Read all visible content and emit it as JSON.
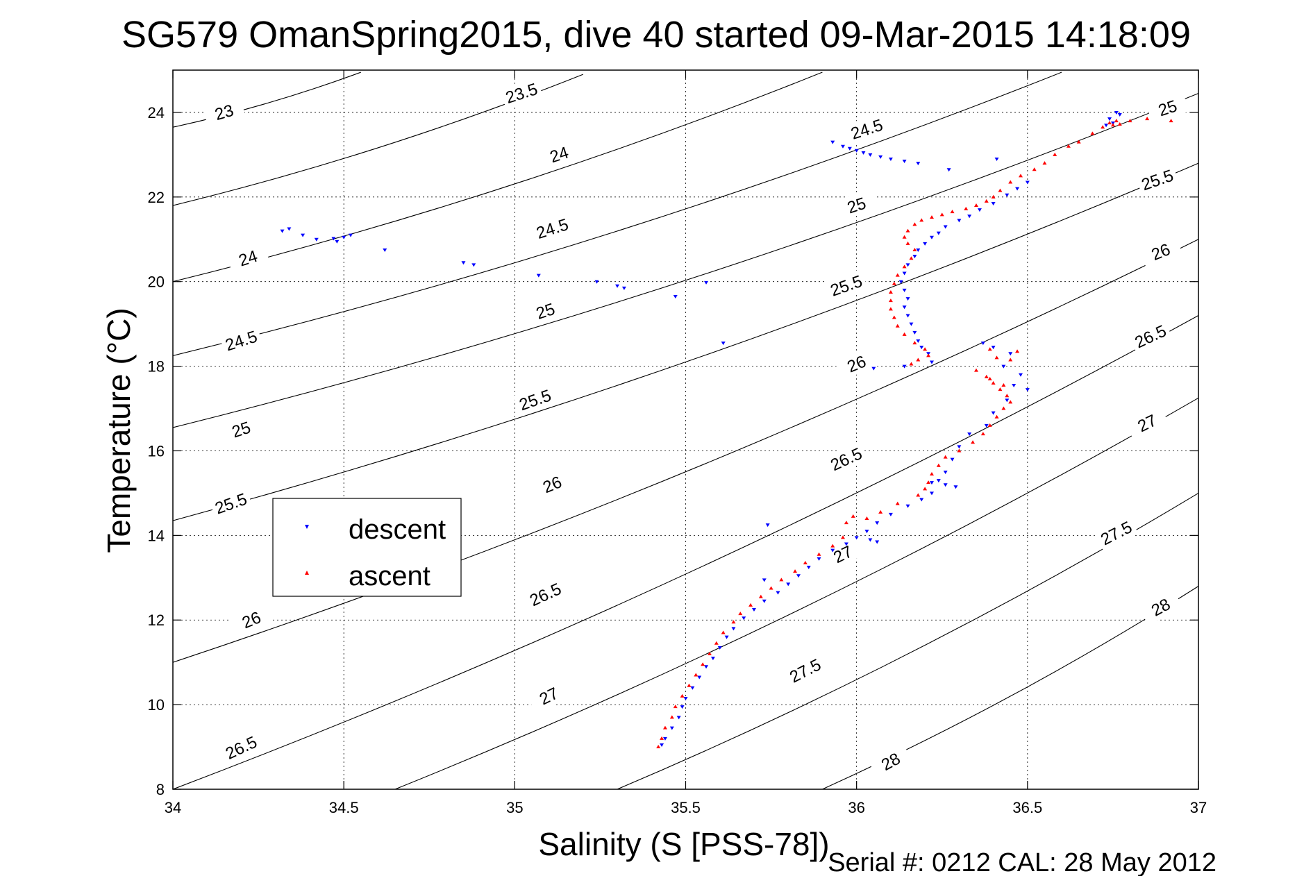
{
  "chart_data": {
    "type": "scatter",
    "title": "SG579 OmanSpring2015, dive 40 started 09-Mar-2015 14:18:09",
    "xlabel": "Salinity (S [PSS-78])",
    "ylabel": "Temperature (°C)",
    "footer": "Serial #: 0212  CAL: 28 May 2012",
    "xlim": [
      34,
      37
    ],
    "ylim": [
      8,
      25
    ],
    "xticks": [
      34,
      34.5,
      35,
      35.5,
      36,
      36.5,
      37
    ],
    "xtick_labels": [
      "34",
      "34.5",
      "35",
      "35.5",
      "36",
      "36.5",
      "37"
    ],
    "yticks": [
      8,
      10,
      12,
      14,
      16,
      18,
      20,
      22,
      24
    ],
    "ytick_labels": [
      "8",
      "10",
      "12",
      "14",
      "16",
      "18",
      "20",
      "22",
      "24"
    ],
    "grid": true,
    "legend_position": "left-middle",
    "series": [
      {
        "name": "descent",
        "color": "#0000ff",
        "marker": "triangle-down",
        "points": [
          [
            34.32,
            21.2
          ],
          [
            34.34,
            21.25
          ],
          [
            34.38,
            21.1
          ],
          [
            34.42,
            21.0
          ],
          [
            34.47,
            21.02
          ],
          [
            34.48,
            20.95
          ],
          [
            34.5,
            21.05
          ],
          [
            34.52,
            21.1
          ],
          [
            34.62,
            20.75
          ],
          [
            34.85,
            20.45
          ],
          [
            34.88,
            20.4
          ],
          [
            35.07,
            20.15
          ],
          [
            35.24,
            20.0
          ],
          [
            35.3,
            19.9
          ],
          [
            35.32,
            19.85
          ],
          [
            35.47,
            19.65
          ],
          [
            35.56,
            19.98
          ],
          [
            35.61,
            18.55
          ],
          [
            35.93,
            23.3
          ],
          [
            35.96,
            23.2
          ],
          [
            35.98,
            23.15
          ],
          [
            36.0,
            23.1
          ],
          [
            36.02,
            23.05
          ],
          [
            36.04,
            23.0
          ],
          [
            36.07,
            22.95
          ],
          [
            36.1,
            22.9
          ],
          [
            36.14,
            22.85
          ],
          [
            36.18,
            22.8
          ],
          [
            36.27,
            22.65
          ],
          [
            36.41,
            22.9
          ],
          [
            36.76,
            24.0
          ],
          [
            36.77,
            23.95
          ],
          [
            36.74,
            23.85
          ],
          [
            36.73,
            23.7
          ],
          [
            36.75,
            23.75
          ],
          [
            36.5,
            22.35
          ],
          [
            36.47,
            22.2
          ],
          [
            36.44,
            22.05
          ],
          [
            36.4,
            21.85
          ],
          [
            36.36,
            21.7
          ],
          [
            36.33,
            21.55
          ],
          [
            36.3,
            21.45
          ],
          [
            36.26,
            21.3
          ],
          [
            36.24,
            21.15
          ],
          [
            36.22,
            21.05
          ],
          [
            36.2,
            20.9
          ],
          [
            36.18,
            20.75
          ],
          [
            36.17,
            20.6
          ],
          [
            36.15,
            20.4
          ],
          [
            36.14,
            20.2
          ],
          [
            36.13,
            20.0
          ],
          [
            36.14,
            19.8
          ],
          [
            36.15,
            19.6
          ],
          [
            36.14,
            19.4
          ],
          [
            36.15,
            19.2
          ],
          [
            36.16,
            19.0
          ],
          [
            36.17,
            18.8
          ],
          [
            36.18,
            18.6
          ],
          [
            36.19,
            18.45
          ],
          [
            36.21,
            18.3
          ],
          [
            36.22,
            18.1
          ],
          [
            36.14,
            18.0
          ],
          [
            36.05,
            17.95
          ],
          [
            36.37,
            18.55
          ],
          [
            36.4,
            18.45
          ],
          [
            36.45,
            18.3
          ],
          [
            36.43,
            18.0
          ],
          [
            36.48,
            17.8
          ],
          [
            36.46,
            17.55
          ],
          [
            36.5,
            17.45
          ],
          [
            36.44,
            17.2
          ],
          [
            36.4,
            16.9
          ],
          [
            36.38,
            16.6
          ],
          [
            36.33,
            16.4
          ],
          [
            36.3,
            16.1
          ],
          [
            36.28,
            15.8
          ],
          [
            36.26,
            15.5
          ],
          [
            36.24,
            15.3
          ],
          [
            36.22,
            15.25
          ],
          [
            36.26,
            15.2
          ],
          [
            36.29,
            15.15
          ],
          [
            36.22,
            15.0
          ],
          [
            36.19,
            14.85
          ],
          [
            36.15,
            14.7
          ],
          [
            36.1,
            14.5
          ],
          [
            36.06,
            14.3
          ],
          [
            36.03,
            14.1
          ],
          [
            36.0,
            13.95
          ],
          [
            36.04,
            13.9
          ],
          [
            36.06,
            13.85
          ],
          [
            35.97,
            13.8
          ],
          [
            35.93,
            13.65
          ],
          [
            35.89,
            13.45
          ],
          [
            35.86,
            13.25
          ],
          [
            35.83,
            13.05
          ],
          [
            35.8,
            12.85
          ],
          [
            35.77,
            12.65
          ],
          [
            35.73,
            12.45
          ],
          [
            35.7,
            12.25
          ],
          [
            35.67,
            12.05
          ],
          [
            35.64,
            11.8
          ],
          [
            35.62,
            11.6
          ],
          [
            35.6,
            11.35
          ],
          [
            35.58,
            11.1
          ],
          [
            35.56,
            10.9
          ],
          [
            35.54,
            10.65
          ],
          [
            35.52,
            10.4
          ],
          [
            35.5,
            10.15
          ],
          [
            35.49,
            9.95
          ],
          [
            35.48,
            9.7
          ],
          [
            35.46,
            9.45
          ],
          [
            35.44,
            9.2
          ],
          [
            35.43,
            9.05
          ],
          [
            35.74,
            14.25
          ],
          [
            35.73,
            12.95
          ]
        ]
      },
      {
        "name": "ascent",
        "color": "#ff0000",
        "marker": "triangle-up",
        "points": [
          [
            36.72,
            23.65
          ],
          [
            36.74,
            23.75
          ],
          [
            36.76,
            23.8
          ],
          [
            36.75,
            23.7
          ],
          [
            36.77,
            23.72
          ],
          [
            36.8,
            23.8
          ],
          [
            36.85,
            23.85
          ],
          [
            36.92,
            23.8
          ],
          [
            36.69,
            23.5
          ],
          [
            36.65,
            23.3
          ],
          [
            36.62,
            23.2
          ],
          [
            36.58,
            23.0
          ],
          [
            36.55,
            22.8
          ],
          [
            36.52,
            22.65
          ],
          [
            36.48,
            22.5
          ],
          [
            36.45,
            22.35
          ],
          [
            36.42,
            22.15
          ],
          [
            36.4,
            22.0
          ],
          [
            36.38,
            21.9
          ],
          [
            36.35,
            21.8
          ],
          [
            36.32,
            21.72
          ],
          [
            36.28,
            21.65
          ],
          [
            36.25,
            21.58
          ],
          [
            36.22,
            21.52
          ],
          [
            36.19,
            21.45
          ],
          [
            36.17,
            21.35
          ],
          [
            36.15,
            21.2
          ],
          [
            36.14,
            21.05
          ],
          [
            36.15,
            20.9
          ],
          [
            36.17,
            20.75
          ],
          [
            36.16,
            20.55
          ],
          [
            36.14,
            20.35
          ],
          [
            36.12,
            20.15
          ],
          [
            36.11,
            19.95
          ],
          [
            36.1,
            19.75
          ],
          [
            36.1,
            19.55
          ],
          [
            36.1,
            19.35
          ],
          [
            36.11,
            19.15
          ],
          [
            36.12,
            18.95
          ],
          [
            36.14,
            18.75
          ],
          [
            36.17,
            18.55
          ],
          [
            36.2,
            18.4
          ],
          [
            36.21,
            18.25
          ],
          [
            36.18,
            18.15
          ],
          [
            36.16,
            18.05
          ],
          [
            36.35,
            17.9
          ],
          [
            36.38,
            17.75
          ],
          [
            36.4,
            17.6
          ],
          [
            36.42,
            17.45
          ],
          [
            36.44,
            17.3
          ],
          [
            36.45,
            17.15
          ],
          [
            36.43,
            17.0
          ],
          [
            36.41,
            16.8
          ],
          [
            36.39,
            16.6
          ],
          [
            36.37,
            16.4
          ],
          [
            36.34,
            16.2
          ],
          [
            36.3,
            16.0
          ],
          [
            36.26,
            15.85
          ],
          [
            36.24,
            15.65
          ],
          [
            36.22,
            15.45
          ],
          [
            36.21,
            15.25
          ],
          [
            36.2,
            15.1
          ],
          [
            36.18,
            14.95
          ],
          [
            36.12,
            14.75
          ],
          [
            36.07,
            14.55
          ],
          [
            36.03,
            14.4
          ],
          [
            35.99,
            14.45
          ],
          [
            35.97,
            14.3
          ],
          [
            35.96,
            13.95
          ],
          [
            35.93,
            13.75
          ],
          [
            35.89,
            13.55
          ],
          [
            35.85,
            13.35
          ],
          [
            35.82,
            13.15
          ],
          [
            35.78,
            12.95
          ],
          [
            35.75,
            12.75
          ],
          [
            35.72,
            12.55
          ],
          [
            35.69,
            12.35
          ],
          [
            35.66,
            12.15
          ],
          [
            35.64,
            11.95
          ],
          [
            35.61,
            11.7
          ],
          [
            35.59,
            11.45
          ],
          [
            35.57,
            11.2
          ],
          [
            35.55,
            10.95
          ],
          [
            35.53,
            10.7
          ],
          [
            35.51,
            10.45
          ],
          [
            35.49,
            10.2
          ],
          [
            35.47,
            9.95
          ],
          [
            35.46,
            9.7
          ],
          [
            35.44,
            9.45
          ],
          [
            35.43,
            9.2
          ],
          [
            35.42,
            9.0
          ],
          [
            36.39,
            18.4
          ],
          [
            36.41,
            18.2
          ],
          [
            36.47,
            18.35
          ],
          [
            36.45,
            18.15
          ],
          [
            36.39,
            17.7
          ],
          [
            36.43,
            17.55
          ]
        ]
      }
    ],
    "contours": [
      {
        "sigma": 23,
        "path": [
          [
            34.0,
            23.65
          ],
          [
            34.55,
            24.95
          ]
        ],
        "labels": [
          {
            "text": "23",
            "s": 34.15,
            "t": 24.0
          }
        ]
      },
      {
        "sigma": 23.5,
        "path": [
          [
            34.0,
            21.8
          ],
          [
            35.2,
            24.9
          ]
        ],
        "labels": [
          {
            "text": "23.5",
            "s": 35.02,
            "t": 24.45
          }
        ]
      },
      {
        "sigma": 24,
        "path": [
          [
            34.0,
            20.0
          ],
          [
            35.9,
            24.95
          ]
        ],
        "labels": [
          {
            "text": "24",
            "s": 34.22,
            "t": 20.55
          },
          {
            "text": "24",
            "s": 35.13,
            "t": 23.0
          }
        ]
      },
      {
        "sigma": 24.5,
        "path": [
          [
            34.0,
            18.25
          ],
          [
            36.6,
            24.95
          ]
        ],
        "labels": [
          {
            "text": "24.5",
            "s": 34.2,
            "t": 18.6
          },
          {
            "text": "24.5",
            "s": 35.11,
            "t": 21.25
          },
          {
            "text": "24.5",
            "s": 36.03,
            "t": 23.6
          }
        ]
      },
      {
        "sigma": 25,
        "path": [
          [
            34.0,
            16.55
          ],
          [
            37.0,
            24.45
          ]
        ],
        "labels": [
          {
            "text": "25",
            "s": 34.2,
            "t": 16.5
          },
          {
            "text": "25",
            "s": 35.09,
            "t": 19.3
          },
          {
            "text": "25",
            "s": 36.0,
            "t": 21.8
          },
          {
            "text": "25",
            "s": 36.91,
            "t": 24.1
          }
        ]
      },
      {
        "sigma": 25.5,
        "path": [
          [
            34.0,
            14.35
          ],
          [
            37.0,
            22.8
          ]
        ],
        "labels": [
          {
            "text": "25.5",
            "s": 34.17,
            "t": 14.75
          },
          {
            "text": "25.5",
            "s": 35.06,
            "t": 17.2
          },
          {
            "text": "25.5",
            "s": 35.97,
            "t": 19.9
          },
          {
            "text": "25.5",
            "s": 36.88,
            "t": 22.4
          }
        ]
      },
      {
        "sigma": 26,
        "path": [
          [
            34.0,
            11.0
          ],
          [
            37.0,
            21.0
          ]
        ],
        "labels": [
          {
            "text": "26",
            "s": 34.23,
            "t": 12.0
          },
          {
            "text": "26",
            "s": 35.11,
            "t": 15.2
          },
          {
            "text": "26",
            "s": 36.0,
            "t": 18.05
          },
          {
            "text": "26",
            "s": 36.89,
            "t": 20.7
          }
        ]
      },
      {
        "sigma": 26.5,
        "path": [
          [
            34.0,
            8.0
          ],
          [
            37.0,
            19.2
          ]
        ],
        "labels": [
          {
            "text": "26.5",
            "s": 34.2,
            "t": 8.98
          },
          {
            "text": "26.5",
            "s": 35.09,
            "t": 12.6
          },
          {
            "text": "26.5",
            "s": 35.97,
            "t": 15.8
          },
          {
            "text": "26.5",
            "s": 36.86,
            "t": 18.7
          }
        ]
      },
      {
        "sigma": 27,
        "path": [
          [
            34.65,
            8.0
          ],
          [
            37.0,
            17.25
          ]
        ],
        "labels": [
          {
            "text": "27",
            "s": 35.1,
            "t": 10.2
          },
          {
            "text": "27",
            "s": 35.96,
            "t": 13.55
          },
          {
            "text": "27",
            "s": 36.85,
            "t": 16.65
          }
        ]
      },
      {
        "sigma": 27.5,
        "path": [
          [
            35.3,
            8.0
          ],
          [
            37.0,
            15.0
          ]
        ],
        "labels": [
          {
            "text": "27.5",
            "s": 35.85,
            "t": 10.8
          },
          {
            "text": "27.5",
            "s": 36.76,
            "t": 14.05
          }
        ]
      },
      {
        "sigma": 28,
        "path": [
          [
            35.9,
            8.0
          ],
          [
            37.0,
            12.8
          ]
        ],
        "labels": [
          {
            "text": "28",
            "s": 36.1,
            "t": 8.65
          },
          {
            "text": "28",
            "s": 36.89,
            "t": 12.3
          }
        ]
      }
    ]
  }
}
